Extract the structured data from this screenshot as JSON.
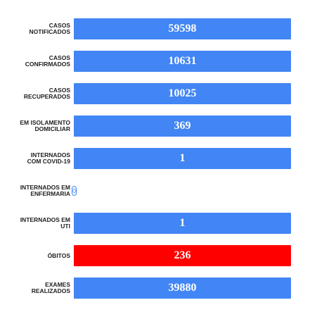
{
  "items": [
    {
      "label": [
        "CASOS",
        "NOTIFICADOS"
      ],
      "value": 59598,
      "color": "#4285f4"
    },
    {
      "label": [
        "CASOS",
        "CONFIRMADOS"
      ],
      "value": 10631,
      "color": "#4285f4"
    },
    {
      "label": [
        "CASOS",
        "RECUPERADOS"
      ],
      "value": 10025,
      "color": "#4285f4"
    },
    {
      "label": [
        "EM ISOLAMENTO",
        "DOMICILIAR"
      ],
      "value": 369,
      "color": "#4285f4"
    },
    {
      "label": [
        "INTERNADOS",
        "COM COVID-19"
      ],
      "value": 1,
      "color": "#4285f4"
    },
    {
      "label": [
        "INTERNADOS EM",
        "ENFERMARIA"
      ],
      "value": 0,
      "color": "#4285f4"
    },
    {
      "label": [
        "INTERNADOS EM",
        "UTI"
      ],
      "value": 1,
      "color": "#4285f4"
    },
    {
      "label": [
        "ÓBITOS"
      ],
      "value": 236,
      "color": "#ff0000"
    },
    {
      "label": [
        "EXAMES",
        "REALIZADOS"
      ],
      "value": 39880,
      "color": "#4285f4"
    }
  ]
}
